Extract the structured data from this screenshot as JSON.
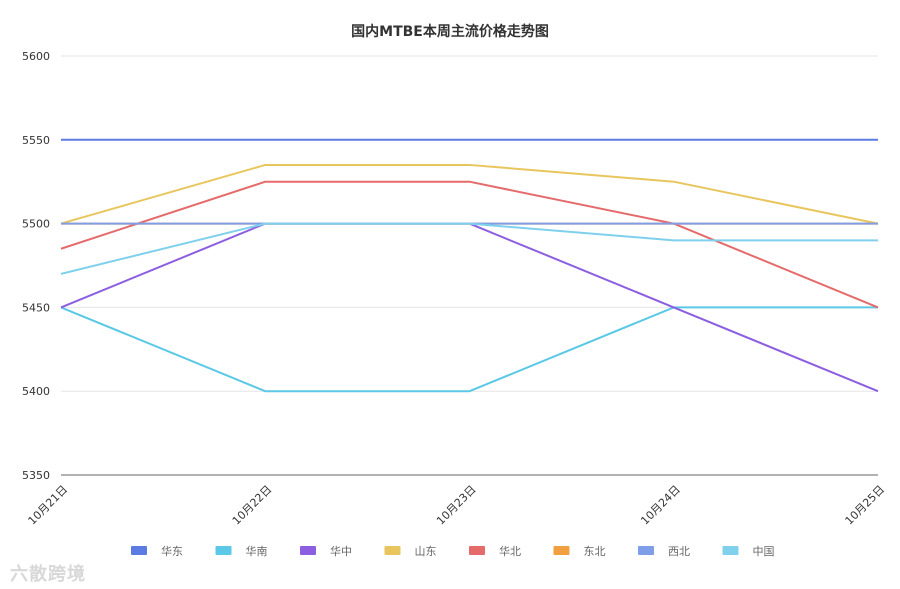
{
  "chart_data": {
    "type": "line",
    "title": "国内MTBE本周主流价格走势图",
    "categories": [
      "10月21日",
      "10月22日",
      "10月23日",
      "10月24日",
      "10月25日"
    ],
    "ylim": [
      5350,
      5600
    ],
    "yticks": [
      5350,
      5400,
      5450,
      5500,
      5550,
      5600
    ],
    "grid": true,
    "legend_position": "bottom",
    "series": [
      {
        "name": "华东",
        "color": "#5b7be3",
        "values": [
          5550,
          5550,
          5550,
          5550,
          5550
        ]
      },
      {
        "name": "华南",
        "color": "#5ac8e6",
        "values": [
          5450,
          5400,
          5400,
          5450,
          5450
        ]
      },
      {
        "name": "华中",
        "color": "#8c5ee0",
        "values": [
          5450,
          5500,
          5500,
          5450,
          5400
        ]
      },
      {
        "name": "山东",
        "color": "#e8c65d",
        "values": [
          5500,
          5535,
          5535,
          5525,
          5500
        ]
      },
      {
        "name": "华北",
        "color": "#e56b6b",
        "values": [
          5485,
          5525,
          5525,
          5500,
          5450
        ]
      },
      {
        "name": "东北",
        "color": "#f0a040",
        "values": [
          5500,
          5500,
          5500,
          5500,
          5500
        ]
      },
      {
        "name": "西北",
        "color": "#7f9ee8",
        "values": [
          5500,
          5500,
          5500,
          5500,
          5500
        ]
      },
      {
        "name": "中国",
        "color": "#7fd0ec",
        "values": [
          5470,
          5500,
          5500,
          5490,
          5490
        ]
      }
    ]
  },
  "watermark": {
    "text": "六散跨境"
  }
}
